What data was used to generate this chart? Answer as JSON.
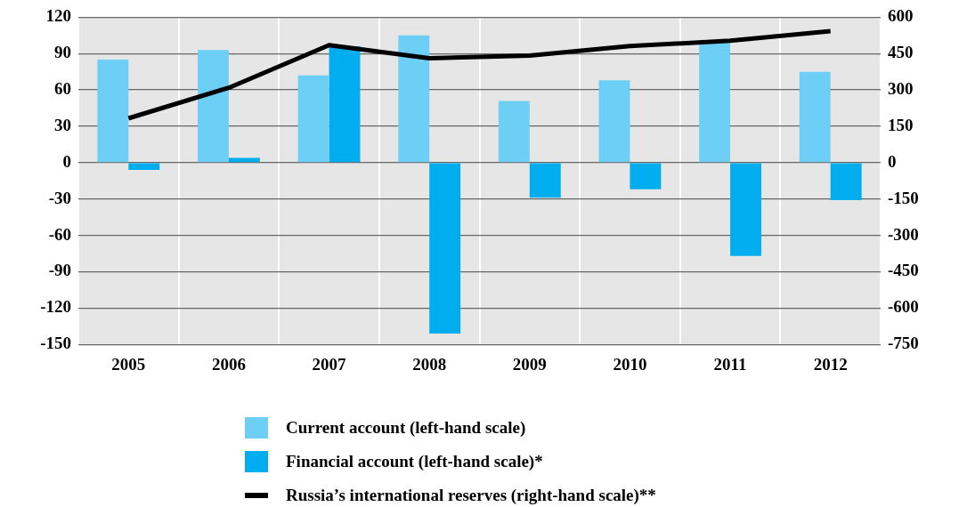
{
  "chart_data": {
    "type": "bar",
    "categories": [
      "2005",
      "2006",
      "2007",
      "2008",
      "2009",
      "2010",
      "2011",
      "2012"
    ],
    "series": [
      {
        "name": "Current account (left-hand scale)",
        "color": "#6dcff6",
        "values": [
          85,
          93,
          72,
          105,
          51,
          68,
          100,
          75
        ]
      },
      {
        "name": "Financial account (left-hand scale)*",
        "color": "#00aeef",
        "values": [
          -6,
          4,
          96,
          -141,
          -29,
          -22,
          -77,
          -31
        ]
      },
      {
        "name": "Russia’s international reserves (right-hand scale)**",
        "type": "line",
        "axis": "y2",
        "color": "#000000",
        "values": [
          183,
          309,
          485,
          431,
          442,
          481,
          503,
          543
        ]
      }
    ],
    "ylim": [
      -150,
      120
    ],
    "yticks": [
      -150,
      -120,
      -90,
      -60,
      -30,
      0,
      30,
      60,
      90,
      120
    ],
    "y2lim": [
      -750,
      600
    ],
    "y2ticks": [
      -750,
      -600,
      -450,
      -300,
      -150,
      0,
      150,
      300,
      450,
      600
    ],
    "grid": true,
    "legend": "bottom",
    "marker": "none",
    "line_style": "solid"
  }
}
